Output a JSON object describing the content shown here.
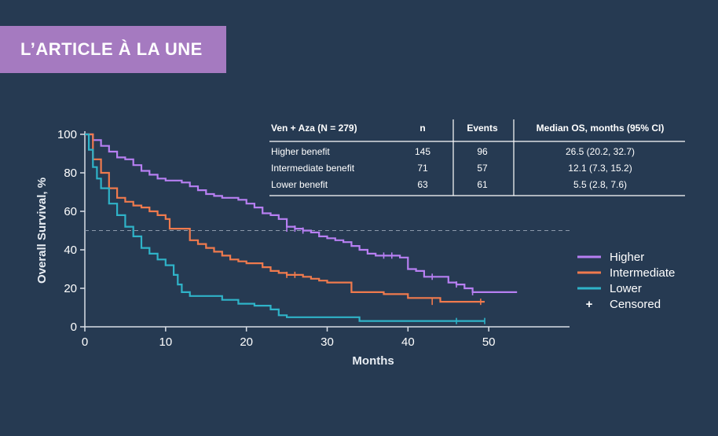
{
  "banner": {
    "label": "L’ARTICLE À LA UNE"
  },
  "colors": {
    "background": "#263a52",
    "banner": "#a57ac0",
    "higher": "#b77ff2",
    "intermediate": "#f07a4d",
    "lower": "#2fb3c8",
    "axis": "#d8dee6"
  },
  "chart_data": {
    "type": "line",
    "subtype": "kaplan-meier survival curve",
    "xlabel": "Months",
    "ylabel": "Overall Survival, %",
    "xlim": [
      0,
      60
    ],
    "ylim": [
      0,
      100
    ],
    "xticks": [
      0,
      10,
      20,
      30,
      40,
      50
    ],
    "yticks": [
      0,
      20,
      40,
      60,
      80,
      100
    ],
    "reference_line": {
      "y": 50,
      "style": "dashed"
    },
    "grid": false,
    "legend_position": "right",
    "legend_censored_label": "Censored",
    "series": [
      {
        "name": "Higher",
        "color_key": "higher",
        "points": [
          [
            0,
            100
          ],
          [
            1,
            97
          ],
          [
            2,
            94
          ],
          [
            3,
            91
          ],
          [
            4,
            88
          ],
          [
            5,
            87
          ],
          [
            6,
            84
          ],
          [
            7,
            81
          ],
          [
            8,
            79
          ],
          [
            9,
            77
          ],
          [
            10,
            76
          ],
          [
            11,
            76
          ],
          [
            12,
            75
          ],
          [
            13,
            73
          ],
          [
            14,
            71
          ],
          [
            15,
            69
          ],
          [
            16,
            68
          ],
          [
            17,
            67
          ],
          [
            18,
            67
          ],
          [
            19,
            66
          ],
          [
            20,
            64
          ],
          [
            21,
            62
          ],
          [
            22,
            59
          ],
          [
            23,
            58
          ],
          [
            24,
            56
          ],
          [
            25,
            52
          ],
          [
            26,
            51
          ],
          [
            27,
            50
          ],
          [
            28,
            49
          ],
          [
            29,
            47
          ],
          [
            30,
            46
          ],
          [
            31,
            45
          ],
          [
            32,
            44
          ],
          [
            33,
            42
          ],
          [
            34,
            40
          ],
          [
            35,
            38
          ],
          [
            36,
            37
          ],
          [
            37,
            37
          ],
          [
            38,
            37
          ],
          [
            39,
            36
          ],
          [
            40,
            30
          ],
          [
            41,
            29
          ],
          [
            42,
            26
          ],
          [
            43,
            26
          ],
          [
            44,
            26
          ],
          [
            45,
            23
          ],
          [
            46,
            22
          ],
          [
            47,
            20
          ],
          [
            48,
            18
          ],
          [
            50,
            18
          ],
          [
            53.5,
            18
          ]
        ],
        "censored": [
          [
            25,
            51
          ],
          [
            26,
            51
          ],
          [
            27,
            50
          ],
          [
            37,
            37
          ],
          [
            38,
            37
          ],
          [
            43,
            26
          ],
          [
            46,
            22
          ],
          [
            48,
            18
          ]
        ]
      },
      {
        "name": "Intermediate",
        "color_key": "intermediate",
        "points": [
          [
            0,
            100
          ],
          [
            1,
            87
          ],
          [
            2,
            80
          ],
          [
            3,
            72
          ],
          [
            4,
            67
          ],
          [
            5,
            65
          ],
          [
            6,
            63
          ],
          [
            7,
            62
          ],
          [
            8,
            60
          ],
          [
            9,
            58
          ],
          [
            10,
            56
          ],
          [
            10.5,
            51
          ],
          [
            12,
            51
          ],
          [
            13,
            45
          ],
          [
            14,
            43
          ],
          [
            15,
            41
          ],
          [
            16,
            39
          ],
          [
            17,
            37
          ],
          [
            18,
            35
          ],
          [
            19,
            34
          ],
          [
            20,
            33
          ],
          [
            21,
            33
          ],
          [
            22,
            31
          ],
          [
            23,
            29
          ],
          [
            24,
            28
          ],
          [
            25,
            27
          ],
          [
            27,
            26
          ],
          [
            28,
            25
          ],
          [
            29,
            24
          ],
          [
            30,
            23
          ],
          [
            33,
            18
          ],
          [
            37,
            17
          ],
          [
            40,
            15
          ],
          [
            43,
            15
          ],
          [
            44,
            13
          ],
          [
            49.5,
            13
          ]
        ],
        "censored": [
          [
            25,
            27
          ],
          [
            26,
            27
          ],
          [
            43,
            13
          ],
          [
            49,
            13
          ]
        ]
      },
      {
        "name": "Lower",
        "color_key": "lower",
        "points": [
          [
            0,
            100
          ],
          [
            0.5,
            92
          ],
          [
            1,
            83
          ],
          [
            1.5,
            77
          ],
          [
            2,
            72
          ],
          [
            3,
            64
          ],
          [
            4,
            58
          ],
          [
            5,
            52
          ],
          [
            6,
            47
          ],
          [
            7,
            41
          ],
          [
            8,
            38
          ],
          [
            9,
            35
          ],
          [
            10,
            32
          ],
          [
            11,
            27
          ],
          [
            11.5,
            22
          ],
          [
            12,
            18
          ],
          [
            13,
            16
          ],
          [
            15,
            16
          ],
          [
            17,
            14
          ],
          [
            18,
            14
          ],
          [
            19,
            12
          ],
          [
            21,
            11
          ],
          [
            23,
            9
          ],
          [
            24,
            6
          ],
          [
            25,
            5
          ],
          [
            30,
            5
          ],
          [
            34,
            3
          ],
          [
            49.5,
            3
          ]
        ],
        "censored": [
          [
            46,
            3
          ],
          [
            49.5,
            3
          ]
        ]
      }
    ],
    "table": {
      "headers": [
        "Ven + Aza (N = 279)",
        "n",
        "Events",
        "Median OS, months (95% CI)"
      ],
      "rows": [
        [
          "Higher benefit",
          "145",
          "96",
          "26.5 (20.2, 32.7)"
        ],
        [
          "Intermediate benefit",
          "71",
          "57",
          "12.1 (7.3, 15.2)"
        ],
        [
          "Lower benefit",
          "63",
          "61",
          "5.5 (2.8, 7.6)"
        ]
      ]
    }
  }
}
